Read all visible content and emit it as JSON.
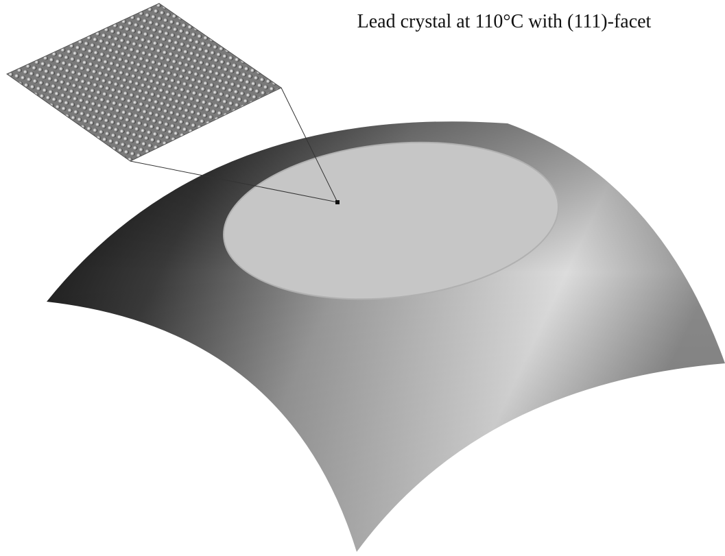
{
  "caption": "Lead crystal at 110°C with (111)-facet"
}
